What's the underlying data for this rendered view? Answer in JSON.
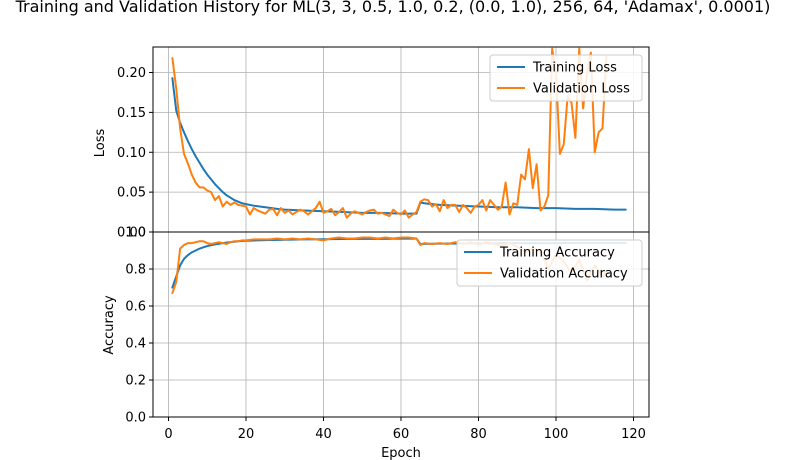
{
  "colors": {
    "training": "#1f77b4",
    "validation": "#ff7f0e",
    "grid": "#b0b0b0"
  },
  "chart_data": [
    {
      "type": "line",
      "title": "Training and Validation History for ML(3, 3, 0.5, 1.0, 0.2, (0.0, 1.0), 256, 64, 'Adamax', 0.0001)",
      "ylabel": "Loss",
      "xlim": [
        -4,
        124
      ],
      "ylim": [
        0,
        0.232
      ],
      "xticks": [
        0,
        20,
        40,
        60,
        80,
        100,
        120
      ],
      "yticks": [
        0.0,
        0.05,
        0.1,
        0.15,
        0.2
      ],
      "ytick_labels": [
        "0.00",
        "0.05",
        "0.10",
        "0.15",
        "0.20"
      ],
      "grid": true,
      "legend": "top-right",
      "series": [
        {
          "name": "Training Loss",
          "x": [
            1,
            2,
            3,
            4,
            5,
            6,
            7,
            8,
            9,
            10,
            11,
            12,
            13,
            14,
            15,
            16,
            17,
            18,
            19,
            20,
            22,
            25,
            28,
            30,
            35,
            40,
            45,
            50,
            55,
            60,
            63,
            64,
            65,
            66,
            68,
            70,
            75,
            80,
            85,
            90,
            95,
            100,
            105,
            110,
            115,
            118
          ],
          "y": [
            0.193,
            0.152,
            0.137,
            0.125,
            0.114,
            0.104,
            0.095,
            0.087,
            0.079,
            0.072,
            0.066,
            0.06,
            0.055,
            0.05,
            0.046,
            0.043,
            0.04,
            0.038,
            0.036,
            0.035,
            0.033,
            0.031,
            0.029,
            0.028,
            0.027,
            0.026,
            0.025,
            0.024,
            0.024,
            0.023,
            0.023,
            0.023,
            0.037,
            0.036,
            0.035,
            0.034,
            0.033,
            0.032,
            0.031,
            0.031,
            0.03,
            0.03,
            0.029,
            0.029,
            0.028,
            0.028
          ]
        },
        {
          "name": "Validation Loss",
          "x": [
            1,
            2,
            3,
            4,
            5,
            6,
            7,
            8,
            9,
            10,
            11,
            12,
            13,
            14,
            15,
            16,
            17,
            18,
            19,
            20,
            21,
            22,
            23,
            24,
            25,
            26,
            27,
            28,
            29,
            30,
            31,
            32,
            33,
            34,
            35,
            36,
            37,
            38,
            39,
            40,
            41,
            42,
            43,
            44,
            45,
            46,
            47,
            48,
            49,
            50,
            51,
            52,
            53,
            54,
            55,
            56,
            57,
            58,
            59,
            60,
            61,
            62,
            63,
            64,
            65,
            66,
            67,
            68,
            69,
            70,
            71,
            72,
            73,
            74,
            75,
            76,
            77,
            78,
            79,
            80,
            81,
            82,
            83,
            84,
            85,
            86,
            87,
            88,
            89,
            90,
            91,
            92,
            93,
            94,
            95,
            96,
            97,
            98,
            99,
            100,
            101,
            102,
            103,
            104,
            105,
            106,
            107,
            108,
            109,
            110,
            111,
            112,
            113
          ],
          "y": [
            0.218,
            0.18,
            0.13,
            0.098,
            0.086,
            0.072,
            0.062,
            0.056,
            0.056,
            0.052,
            0.05,
            0.04,
            0.045,
            0.032,
            0.038,
            0.034,
            0.037,
            0.034,
            0.033,
            0.032,
            0.022,
            0.03,
            0.027,
            0.025,
            0.023,
            0.028,
            0.029,
            0.021,
            0.03,
            0.024,
            0.027,
            0.022,
            0.025,
            0.028,
            0.026,
            0.022,
            0.026,
            0.03,
            0.038,
            0.024,
            0.026,
            0.029,
            0.021,
            0.025,
            0.03,
            0.018,
            0.023,
            0.026,
            0.024,
            0.022,
            0.025,
            0.027,
            0.028,
            0.023,
            0.024,
            0.022,
            0.02,
            0.028,
            0.024,
            0.022,
            0.027,
            0.018,
            0.022,
            0.025,
            0.038,
            0.041,
            0.04,
            0.032,
            0.035,
            0.026,
            0.04,
            0.03,
            0.034,
            0.034,
            0.025,
            0.034,
            0.03,
            0.024,
            0.032,
            0.034,
            0.04,
            0.027,
            0.04,
            0.034,
            0.028,
            0.032,
            0.062,
            0.022,
            0.036,
            0.034,
            0.072,
            0.066,
            0.104,
            0.055,
            0.085,
            0.027,
            0.032,
            0.046,
            0.23,
            0.2,
            0.098,
            0.11,
            0.17,
            0.162,
            0.118,
            0.23,
            0.155,
            0.2,
            0.225,
            0.1,
            0.125,
            0.13,
            0.22
          ]
        }
      ]
    },
    {
      "type": "line",
      "xlabel": "Epoch",
      "ylabel": "Accuracy",
      "xlim": [
        -4,
        124
      ],
      "ylim": [
        0,
        1.0
      ],
      "xticks": [
        0,
        20,
        40,
        60,
        80,
        100,
        120
      ],
      "xtick_labels": [
        "0",
        "20",
        "40",
        "60",
        "80",
        "100",
        "120"
      ],
      "yticks": [
        0.0,
        0.2,
        0.4,
        0.6,
        0.8,
        1.0
      ],
      "ytick_labels": [
        "0.0",
        "0.2",
        "0.4",
        "0.6",
        "0.8",
        "1.0"
      ],
      "grid": true,
      "legend": "top-right",
      "series": [
        {
          "name": "Training Accuracy",
          "x": [
            1,
            2,
            3,
            4,
            5,
            6,
            7,
            8,
            9,
            10,
            12,
            14,
            16,
            18,
            20,
            25,
            30,
            35,
            40,
            45,
            50,
            55,
            60,
            63,
            64,
            65,
            66,
            70,
            75,
            80,
            85,
            90,
            95,
            100,
            105,
            110,
            115,
            118
          ],
          "y": [
            0.7,
            0.76,
            0.82,
            0.855,
            0.875,
            0.89,
            0.9,
            0.91,
            0.917,
            0.924,
            0.933,
            0.94,
            0.945,
            0.95,
            0.953,
            0.956,
            0.958,
            0.96,
            0.961,
            0.962,
            0.963,
            0.963,
            0.964,
            0.964,
            0.964,
            0.935,
            0.936,
            0.937,
            0.938,
            0.939,
            0.939,
            0.94,
            0.94,
            0.94,
            0.941,
            0.941,
            0.941,
            0.941
          ]
        },
        {
          "name": "Validation Accuracy",
          "x": [
            1,
            2,
            3,
            4,
            5,
            6,
            7,
            8,
            9,
            10,
            11,
            12,
            13,
            14,
            15,
            16,
            17,
            18,
            19,
            20,
            22,
            24,
            26,
            28,
            30,
            32,
            34,
            36,
            38,
            40,
            42,
            44,
            46,
            48,
            50,
            52,
            54,
            56,
            58,
            60,
            62,
            64,
            65,
            66,
            68,
            70,
            72,
            74,
            76,
            78,
            80,
            82,
            84,
            86,
            88,
            90,
            92,
            94,
            96,
            98,
            100,
            102,
            104,
            106,
            108,
            110,
            112,
            113
          ],
          "y": [
            0.67,
            0.73,
            0.91,
            0.93,
            0.94,
            0.94,
            0.945,
            0.95,
            0.95,
            0.94,
            0.935,
            0.94,
            0.945,
            0.94,
            0.935,
            0.945,
            0.95,
            0.95,
            0.955,
            0.955,
            0.96,
            0.96,
            0.96,
            0.965,
            0.96,
            0.965,
            0.96,
            0.965,
            0.96,
            0.955,
            0.965,
            0.97,
            0.965,
            0.965,
            0.97,
            0.97,
            0.965,
            0.97,
            0.965,
            0.97,
            0.97,
            0.965,
            0.93,
            0.94,
            0.935,
            0.94,
            0.935,
            0.945,
            0.935,
            0.945,
            0.93,
            0.945,
            0.935,
            0.925,
            0.94,
            0.92,
            0.89,
            0.91,
            0.9,
            0.8,
            0.88,
            0.84,
            0.78,
            0.85,
            0.74,
            0.82,
            0.76,
            0.79
          ]
        }
      ]
    }
  ]
}
